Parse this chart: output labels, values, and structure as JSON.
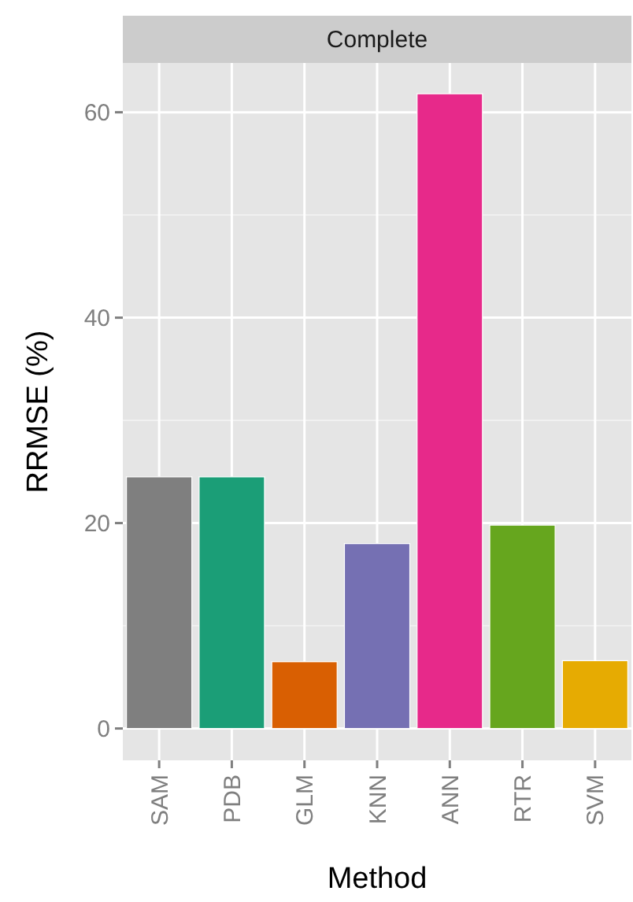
{
  "chart_data": {
    "type": "bar",
    "title": "Complete",
    "xlabel": "Method",
    "ylabel": "RRMSE (%)",
    "categories": [
      "SAM",
      "PDB",
      "GLM",
      "KNN",
      "ANN",
      "RTR",
      "SVM"
    ],
    "values": [
      24.5,
      24.5,
      6.5,
      18,
      61.8,
      19.8,
      6.6
    ],
    "colors": [
      "#7f7f7f",
      "#1b9e77",
      "#d95f02",
      "#7570b3",
      "#e7298a",
      "#66a61e",
      "#e6ab02"
    ],
    "ylim": [
      -3.1,
      64.8
    ],
    "yticks": [
      0,
      20,
      40,
      60
    ],
    "grid": true
  }
}
